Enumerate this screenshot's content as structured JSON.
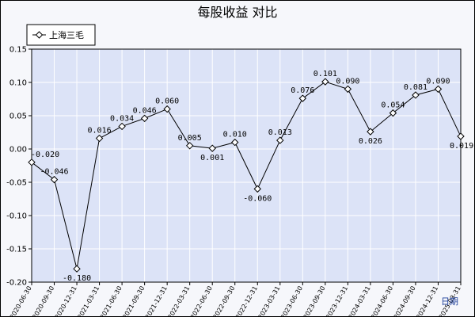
{
  "chart_data": {
    "type": "line",
    "title": "每股收益 对比",
    "xlabel": "日期",
    "ylabel": "",
    "ylim": [
      -0.2,
      0.15
    ],
    "yticks": [
      0.15,
      0.1,
      0.05,
      0.0,
      -0.05,
      -0.1,
      -0.15,
      -0.2
    ],
    "ytick_labels": [
      "0.15",
      "0.10",
      "0.05",
      "0.00",
      "-0.05",
      "-0.10",
      "-0.15",
      "-0.20"
    ],
    "grid": true,
    "legend_position": "top-left",
    "categories": [
      "2020-06-30",
      "2020-09-30",
      "2020-12-31",
      "2021-03-31",
      "2021-06-30",
      "2021-09-30",
      "2021-12-31",
      "2022-03-31",
      "2022-06-30",
      "2022-09-30",
      "2022-12-31",
      "2023-03-31",
      "2023-06-30",
      "2023-09-30",
      "2023-12-31",
      "2024-03-31",
      "2024-06-30",
      "2024-09-30",
      "2024-12-31",
      "2025-03-31"
    ],
    "series": [
      {
        "name": "上海三毛",
        "color": "#000000",
        "values": [
          -0.02,
          -0.046,
          -0.18,
          0.016,
          0.034,
          0.046,
          0.06,
          0.005,
          0.001,
          0.01,
          -0.06,
          0.013,
          0.076,
          0.101,
          0.09,
          0.026,
          0.054,
          0.081,
          0.09,
          0.019
        ],
        "labels": [
          "-0.020",
          "-0.046",
          "-0.180",
          "0.016",
          "0.034",
          "0.046",
          "0.060",
          "0.005",
          "0.001",
          "0.010",
          "-0.060",
          "0.013",
          "0.076",
          "0.101",
          "0.090",
          "0.026",
          "0.054",
          "0.081",
          "0.090",
          "0.019"
        ]
      }
    ]
  }
}
